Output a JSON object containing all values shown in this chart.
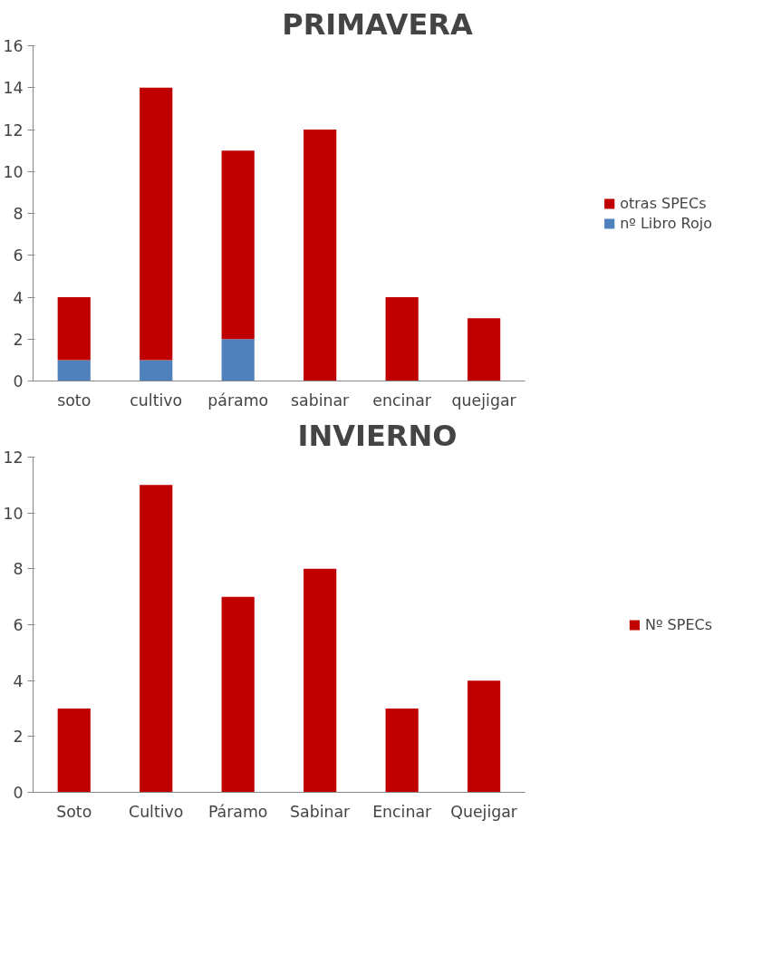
{
  "chart_data": [
    {
      "type": "bar",
      "title": "PRIMAVERA",
      "categories": [
        "soto",
        "cultivo",
        "páramo",
        "sabinar",
        "encinar",
        "quejigar"
      ],
      "stacked": true,
      "series": [
        {
          "name": "nº Libro Rojo",
          "color": "#4f81bd",
          "values": [
            1,
            1,
            2,
            0,
            0,
            0
          ]
        },
        {
          "name": "otras SPECs",
          "color": "#c00000",
          "values": [
            3,
            13,
            9,
            12,
            4,
            3
          ]
        }
      ],
      "ylim": [
        0,
        16
      ],
      "yticks": [
        0,
        2,
        4,
        6,
        8,
        10,
        12,
        14,
        16
      ],
      "grid": false,
      "legend": "right"
    },
    {
      "type": "bar",
      "title": "INVIERNO",
      "categories": [
        "Soto",
        "Cultivo",
        "Páramo",
        "Sabinar",
        "Encinar",
        "Quejigar"
      ],
      "series": [
        {
          "name": "Nº SPECs",
          "color": "#c00000",
          "values": [
            3,
            11,
            7,
            8,
            3,
            4
          ]
        }
      ],
      "ylim": [
        0,
        12
      ],
      "yticks": [
        0,
        2,
        4,
        6,
        8,
        10,
        12
      ],
      "grid": false,
      "legend": "right"
    }
  ]
}
